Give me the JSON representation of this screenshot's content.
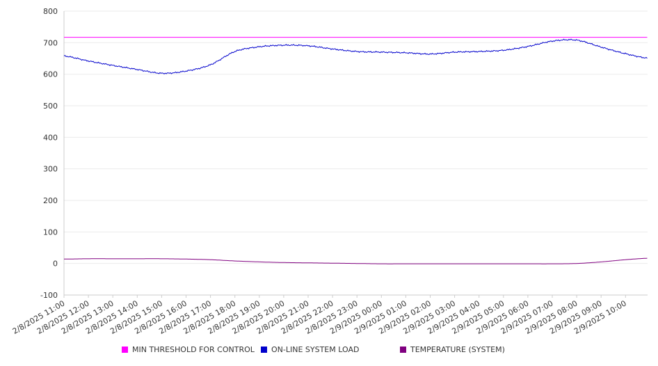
{
  "chart_data": {
    "type": "line",
    "title": "",
    "xlabel": "",
    "ylabel": "",
    "ylim": [
      -100,
      800
    ],
    "yticks": [
      -100,
      0,
      100,
      200,
      300,
      400,
      500,
      600,
      700,
      800
    ],
    "grid": true,
    "legend_position": "bottom",
    "x_tick_labels": [
      "2/8/2025 11:00",
      "2/8/2025 12:00",
      "2/8/2025 13:00",
      "2/8/2025 14:00",
      "2/8/2025 15:00",
      "2/8/2025 16:00",
      "2/8/2025 17:00",
      "2/8/2025 18:00",
      "2/8/2025 19:00",
      "2/8/2025 20:00",
      "2/8/2025 21:00",
      "2/8/2025 22:00",
      "2/8/2025 23:00",
      "2/9/2025 00:00",
      "2/9/2025 01:00",
      "2/9/2025 02:00",
      "2/9/2025 03:00",
      "2/9/2025 04:00",
      "2/9/2025 05:00",
      "2/9/2025 06:00",
      "2/9/2025 07:00",
      "2/9/2025 08:00",
      "2/9/2025 09:00",
      "2/9/2025 10:00"
    ],
    "x": [
      "2/8/2025 11:00",
      "2/8/2025 12:00",
      "2/8/2025 13:00",
      "2/8/2025 14:00",
      "2/8/2025 15:00",
      "2/8/2025 16:00",
      "2/8/2025 17:00",
      "2/8/2025 18:00",
      "2/8/2025 19:00",
      "2/8/2025 20:00",
      "2/8/2025 21:00",
      "2/8/2025 22:00",
      "2/8/2025 23:00",
      "2/9/2025 00:00",
      "2/9/2025 01:00",
      "2/9/2025 02:00",
      "2/9/2025 03:00",
      "2/9/2025 04:00",
      "2/9/2025 05:00",
      "2/9/2025 06:00",
      "2/9/2025 07:00",
      "2/9/2025 08:00",
      "2/9/2025 09:00",
      "2/9/2025 10:00",
      "2/9/2025 10:40"
    ],
    "series": [
      {
        "name": "MIN THRESHOLD FOR CONTROL",
        "color": "#ff00ff",
        "values": [
          717,
          717,
          717,
          717,
          717,
          717,
          717,
          717,
          717,
          717,
          717,
          717,
          717,
          717,
          717,
          717,
          717,
          717,
          717,
          717,
          717,
          717,
          717,
          717,
          717
        ]
      },
      {
        "name": "ON-LINE SYSTEM LOAD",
        "color": "#0000cc",
        "values": [
          658,
          642,
          628,
          615,
          603,
          610,
          630,
          672,
          687,
          692,
          690,
          680,
          672,
          670,
          668,
          664,
          670,
          672,
          676,
          688,
          705,
          708,
          686,
          665,
          650
        ]
      },
      {
        "name": "TEMPERATURE (SYSTEM)",
        "color": "#800080",
        "values": [
          14,
          15,
          15,
          15,
          15,
          14,
          12,
          8,
          5,
          3,
          2,
          1,
          0,
          -1,
          -1,
          -1,
          -1,
          -1,
          -1,
          -1,
          -1,
          0,
          5,
          12,
          17
        ]
      }
    ]
  }
}
